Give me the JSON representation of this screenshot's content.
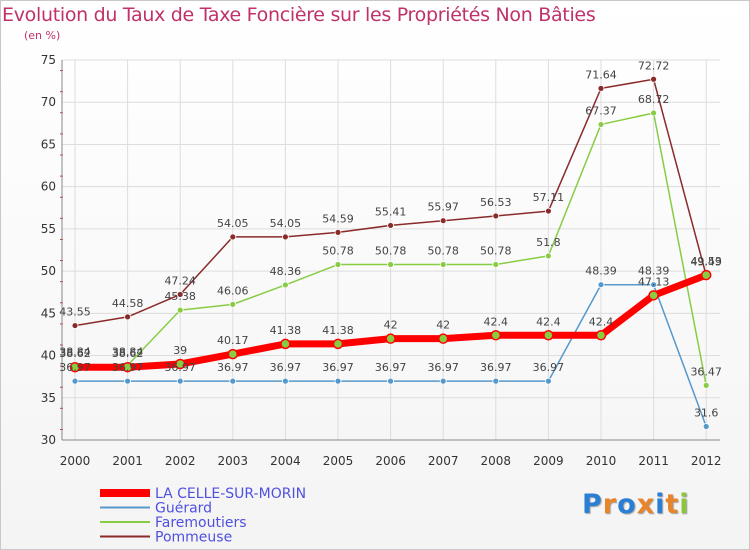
{
  "chart_data": {
    "type": "line",
    "title": "Evolution du Taux de Taxe Foncière sur les Propriétés Non Bâties",
    "subtitle": "(en %)",
    "x": [
      "2000",
      "2001",
      "2002",
      "2003",
      "2004",
      "2005",
      "2006",
      "2007",
      "2008",
      "2009",
      "2010",
      "2011",
      "2012"
    ],
    "ylim": [
      30,
      75
    ],
    "yticks": [
      30,
      35,
      40,
      45,
      50,
      55,
      60,
      65,
      70,
      75
    ],
    "grid": true,
    "legend_position": "bottom-left",
    "series": [
      {
        "name": "LA CELLE-SUR-MORIN",
        "color": "#ff0000",
        "values": [
          38.62,
          38.62,
          39,
          40.17,
          41.38,
          41.38,
          42,
          42,
          42.4,
          42.4,
          42.4,
          47.13,
          49.53
        ],
        "labels": [
          "38.62",
          "38.62",
          "39",
          "40.17",
          "41.38",
          "41.38",
          "42",
          "42",
          "42.4",
          "42.4",
          "42.4",
          "47.13",
          "49.53"
        ]
      },
      {
        "name": "Guérard",
        "color": "#5599cc",
        "values": [
          36.97,
          36.97,
          36.97,
          36.97,
          36.97,
          36.97,
          36.97,
          36.97,
          36.97,
          36.97,
          48.39,
          48.39,
          31.6
        ],
        "labels": [
          "36.97",
          "36.97",
          "36.97",
          "36.97",
          "36.97",
          "36.97",
          "36.97",
          "36.97",
          "36.97",
          "36.97",
          "48.39",
          "48.39",
          "31.6"
        ]
      },
      {
        "name": "Faremoutiers",
        "color": "#88cc44",
        "values": [
          38.84,
          38.84,
          45.38,
          46.06,
          48.36,
          50.78,
          50.78,
          50.78,
          50.78,
          51.8,
          67.37,
          68.72,
          36.47
        ],
        "labels": [
          "38.84",
          "38.84",
          "45.38",
          "46.06",
          "48.36",
          "50.78",
          "50.78",
          "50.78",
          "50.78",
          "51.8",
          "67.37",
          "68.72",
          "36.47"
        ]
      },
      {
        "name": "Pommeuse",
        "color": "#8b2a2a",
        "values": [
          43.55,
          44.58,
          47.24,
          54.05,
          54.05,
          54.59,
          55.41,
          55.97,
          56.53,
          57.11,
          71.64,
          72.72,
          49.49
        ],
        "labels": [
          "43.55",
          "44.58",
          "47.24",
          "54.05",
          "54.05",
          "54.59",
          "55.41",
          "55.97",
          "56.53",
          "57.11",
          "71.64",
          "72.72",
          "49.49"
        ]
      }
    ],
    "logo": {
      "text": "Proxiti",
      "letter_colors": [
        "#2a7fd4",
        "#e8842a",
        "#2a7fd4",
        "#e8842a",
        "#2a7fd4",
        "#e8842a",
        "#8cc63f"
      ]
    }
  }
}
